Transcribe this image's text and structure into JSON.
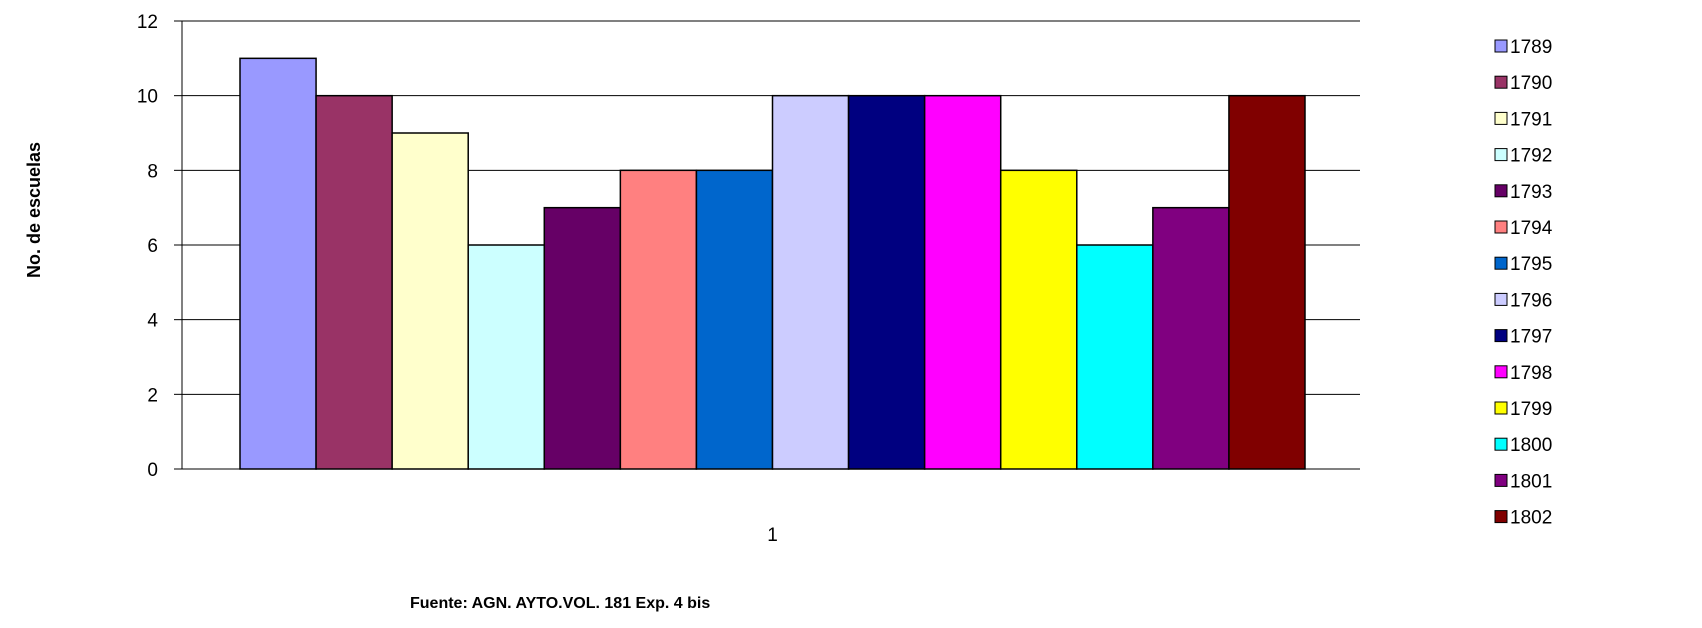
{
  "chart_data": {
    "type": "bar",
    "title": "",
    "xlabel": "",
    "ylabel": "No. de escuelas",
    "categories": [
      "1"
    ],
    "ylim": [
      0,
      12
    ],
    "yticks": [
      0,
      2,
      4,
      6,
      8,
      10,
      12
    ],
    "grid": true,
    "legend_position": "right",
    "series": [
      {
        "name": "1789",
        "values": [
          11
        ],
        "color": "#9999FF"
      },
      {
        "name": "1790",
        "values": [
          10
        ],
        "color": "#993366"
      },
      {
        "name": "1791",
        "values": [
          9
        ],
        "color": "#FFFFCC"
      },
      {
        "name": "1792",
        "values": [
          6
        ],
        "color": "#CCFFFF"
      },
      {
        "name": "1793",
        "values": [
          7
        ],
        "color": "#660066"
      },
      {
        "name": "1794",
        "values": [
          8
        ],
        "color": "#FF8080"
      },
      {
        "name": "1795",
        "values": [
          8
        ],
        "color": "#0066CC"
      },
      {
        "name": "1796",
        "values": [
          10
        ],
        "color": "#CCCCFF"
      },
      {
        "name": "1797",
        "values": [
          10
        ],
        "color": "#000080"
      },
      {
        "name": "1798",
        "values": [
          10
        ],
        "color": "#FF00FF"
      },
      {
        "name": "1799",
        "values": [
          8
        ],
        "color": "#FFFF00"
      },
      {
        "name": "1800",
        "values": [
          6
        ],
        "color": "#00FFFF"
      },
      {
        "name": "1801",
        "values": [
          7
        ],
        "color": "#800080"
      },
      {
        "name": "1802",
        "values": [
          10
        ],
        "color": "#800000"
      }
    ],
    "annotation": "Fuente: AGN. AYTO.VOL. 181 Exp. 4 bis"
  }
}
